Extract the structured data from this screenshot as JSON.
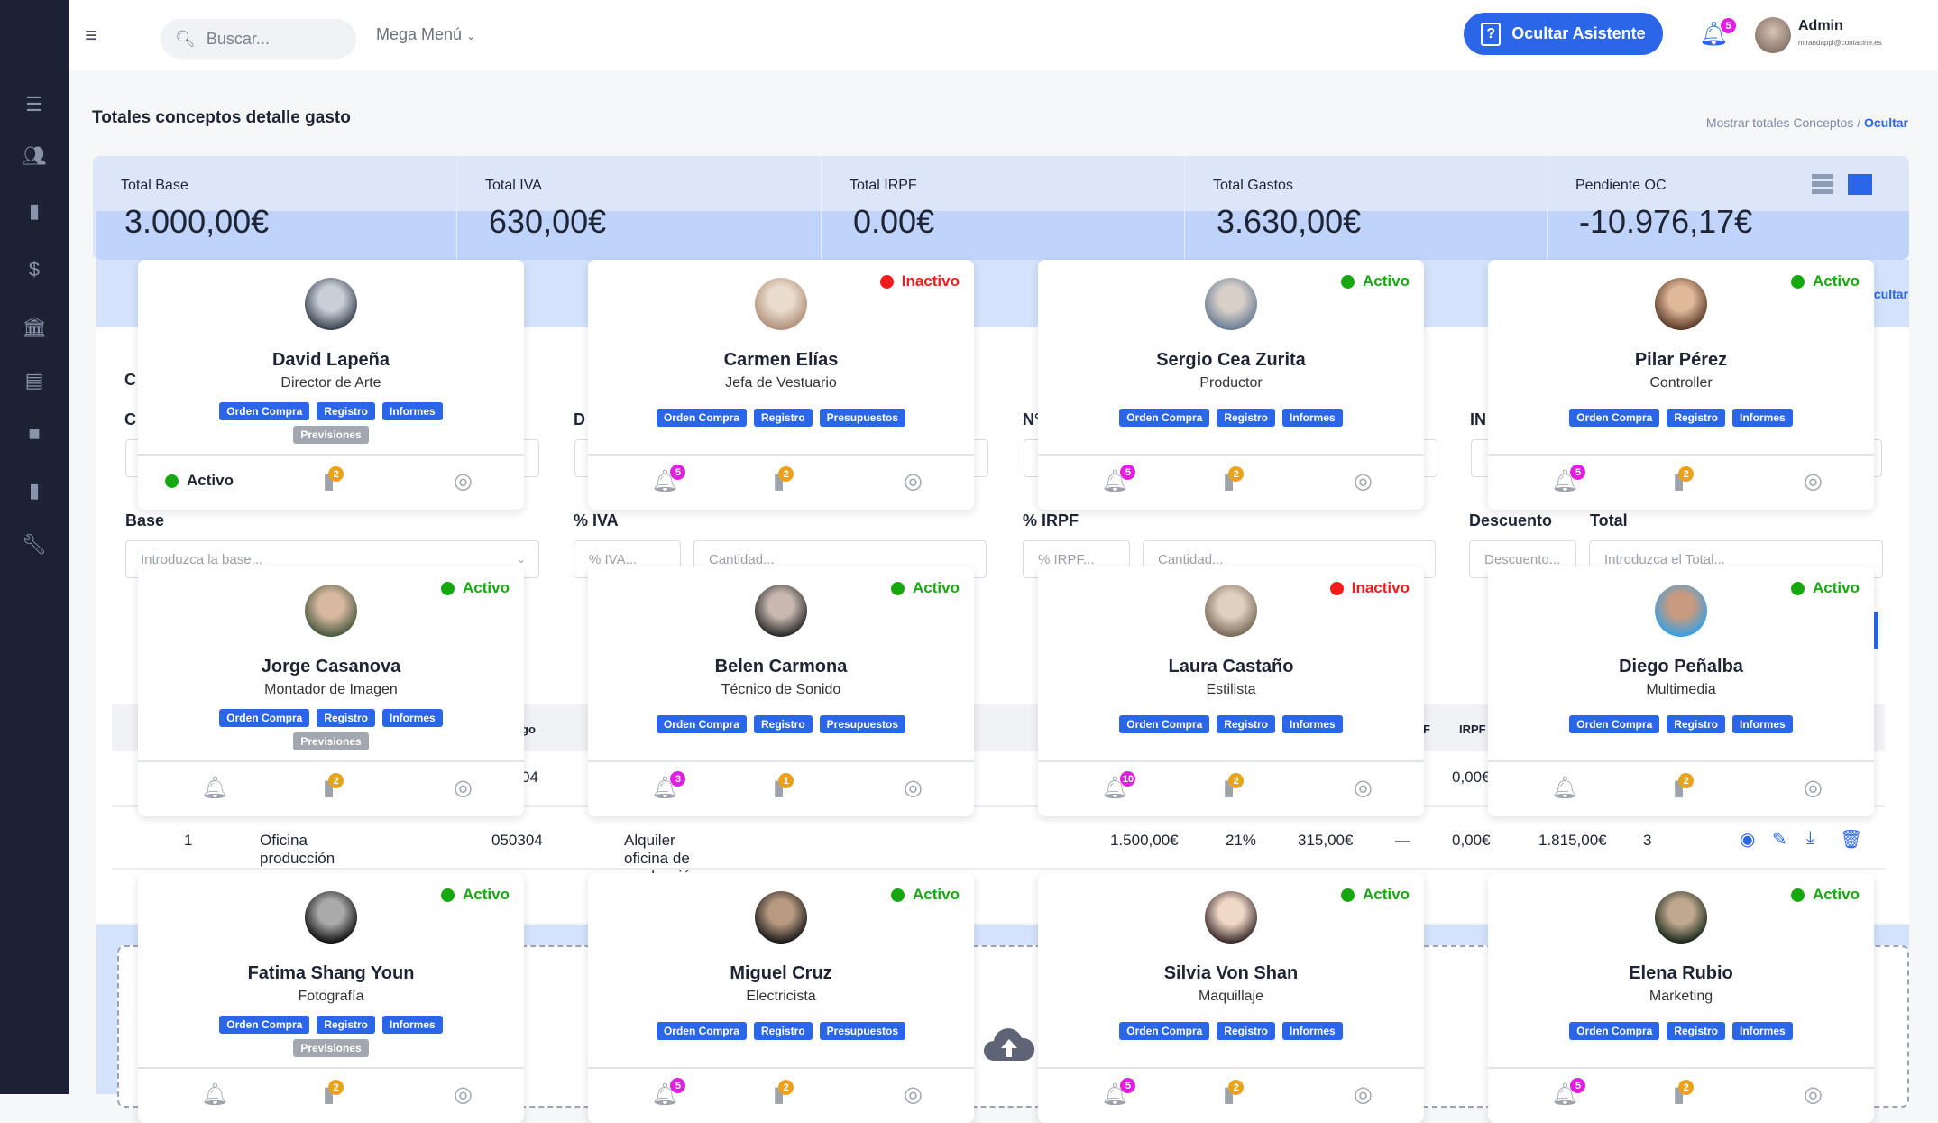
{
  "sidebar": {
    "icons": [
      "list-icon",
      "users-icon",
      "file-icon",
      "dollar-icon",
      "bank-icon",
      "receipt-icon",
      "briefcase-icon",
      "document-icon",
      "wrench-icon"
    ]
  },
  "header": {
    "search_placeholder": "Buscar...",
    "mega_menu": "Mega Menú",
    "assistant_button": "Ocultar Asistente",
    "notifications": "5",
    "user_name": "Admin",
    "user_email": "mirandappl@contacine.es"
  },
  "page": {
    "title": "Totales conceptos detalle gasto",
    "crumb_show": "Mostrar totales Conceptos",
    "crumb_sep": " / ",
    "crumb_hide": "Ocultar",
    "hide_link": "Ocultar"
  },
  "stats": [
    {
      "label": "Total Base",
      "value": "3.000,00€"
    },
    {
      "label": "Total IVA",
      "value": "630,00€"
    },
    {
      "label": "Total IRPF",
      "value": "0.00€"
    },
    {
      "label": "Total Gastos",
      "value": "3.630,00€"
    },
    {
      "label": "Pendiente OC",
      "value": "-10.976,17€"
    }
  ],
  "form": {
    "frag1": "C",
    "frag2": "C",
    "frag3": "D",
    "frag4": "N°",
    "frag5": "IN",
    "base_label": "Base",
    "base_placeholder": "Introduzca la base...",
    "iva_label": "% IVA",
    "iva_placeholder": "% IVA...",
    "cantidad_placeholder": "Cantidad...",
    "irpf_label": "% IRPF",
    "irpf_placeholder": "% IRPF...",
    "descuento_label": "Descuento",
    "descuento_placeholder": "Descuento...",
    "total_label": "Total",
    "total_placeholder": "Introduzca el Total..."
  },
  "table": {
    "header_frag1": "go",
    "header_frag2": "F",
    "header_irpf": "IRPF",
    "row0_frag": "04",
    "row0_irpf": "0,00€",
    "row": {
      "num": "1",
      "concepto": "Oficina producción",
      "codigo": "050304",
      "descripcion": "Alquiler oficina de producción",
      "base": "1.500,00€",
      "iva_pct": "21%",
      "iva": "315,00€",
      "irpf_pct": "—",
      "irpf": "0,00€",
      "total": "1.815,00€",
      "docs": "3"
    }
  },
  "colors": {
    "accent": "#2b66e8",
    "active": "#16a80f",
    "inactive": "#f21c1c",
    "bell_badge": "#e020e0",
    "doc_badge": "#eba21b"
  },
  "cards": [
    {
      "name": "David Lapeña",
      "role": "Director de Arte",
      "status": "Activo",
      "status_pos": "footer",
      "tags": [
        "Orden Compra",
        "Registro",
        "Informes",
        "Previsiones"
      ],
      "bell": null,
      "docs": "2",
      "avatar": [
        "#c9cfd8",
        "#3a4250"
      ]
    },
    {
      "name": "Carmen Elías",
      "role": "Jefa de Vestuario",
      "status": "Inactivo",
      "tags": [
        "Orden Compra",
        "Registro",
        "Presupuestos"
      ],
      "bell": "5",
      "docs": "2",
      "avatar": [
        "#eadccc",
        "#b0907a"
      ]
    },
    {
      "name": "Sergio Cea Zurita",
      "role": "Productor",
      "status": "Activo",
      "tags": [
        "Orden Compra",
        "Registro",
        "Informes"
      ],
      "bell": "5",
      "docs": "2",
      "avatar": [
        "#d8d0c8",
        "#6a7d95"
      ]
    },
    {
      "name": "Pilar Pérez",
      "role": "Controller",
      "status": "Activo",
      "tags": [
        "Orden Compra",
        "Registro",
        "Informes"
      ],
      "bell": "5",
      "docs": "2",
      "avatar": [
        "#e0b89a",
        "#5a3a28"
      ]
    },
    {
      "name": "Jorge Casanova",
      "role": "Montador de Imagen",
      "status": "Activo",
      "tags": [
        "Orden Compra",
        "Registro",
        "Informes",
        "Previsiones"
      ],
      "bell": null,
      "docs": "2",
      "avatar": [
        "#d8b8a0",
        "#4a5a40"
      ]
    },
    {
      "name": "Belen Carmona",
      "role": "Técnico de Sonido",
      "status": "Activo",
      "tags": [
        "Orden Compra",
        "Registro",
        "Presupuestos"
      ],
      "bell": "3",
      "docs": "1",
      "avatar": [
        "#c8b8b0",
        "#2a2a2a"
      ]
    },
    {
      "name": "Laura Castaño",
      "role": "Estilista",
      "status": "Inactivo",
      "tags": [
        "Orden Compra",
        "Registro",
        "Informes"
      ],
      "bell": "10",
      "docs": "2",
      "avatar": [
        "#e0d0c0",
        "#7a6a5a"
      ]
    },
    {
      "name": "Diego Peñalba",
      "role": "Multimedia",
      "status": "Activo",
      "tags": [
        "Orden Compra",
        "Registro",
        "Informes"
      ],
      "bell": null,
      "docs": "2",
      "avatar": [
        "#c89a80",
        "#3aa0e0"
      ]
    },
    {
      "name": "Fatima Shang Youn",
      "role": "Fotografía",
      "status": "Activo",
      "tags": [
        "Orden Compra",
        "Registro",
        "Informes",
        "Previsiones"
      ],
      "bell": null,
      "docs": "2",
      "avatar": [
        "#aaaaaa",
        "#111111"
      ]
    },
    {
      "name": "Miguel Cruz",
      "role": "Electricista",
      "status": "Activo",
      "tags": [
        "Orden Compra",
        "Registro",
        "Presupuestos"
      ],
      "bell": "5",
      "docs": "2",
      "avatar": [
        "#b89a80",
        "#1a1a1a"
      ]
    },
    {
      "name": "Silvia Von Shan",
      "role": "Maquillaje",
      "status": "Activo",
      "tags": [
        "Orden Compra",
        "Registro",
        "Informes"
      ],
      "bell": "5",
      "docs": "2",
      "avatar": [
        "#f0d8c8",
        "#3a2a2a"
      ]
    },
    {
      "name": "Elena Rubio",
      "role": "Marketing",
      "status": "Activo",
      "tags": [
        "Orden Compra",
        "Registro",
        "Informes"
      ],
      "bell": "5",
      "docs": "2",
      "avatar": [
        "#c0a890",
        "#1a2a1a"
      ]
    }
  ]
}
